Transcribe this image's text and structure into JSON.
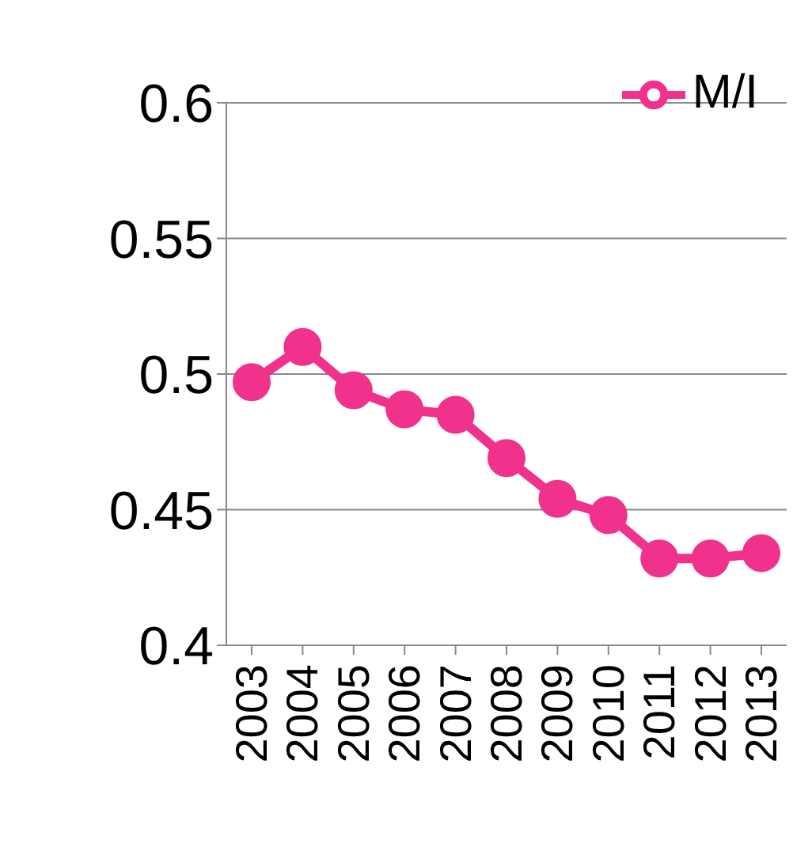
{
  "chart_data": {
    "type": "line",
    "categories": [
      "2003",
      "2004",
      "2005",
      "2006",
      "2007",
      "2008",
      "2009",
      "2010",
      "2011",
      "2012",
      "2013"
    ],
    "series": [
      {
        "name": "M/I",
        "color": "#f0328c",
        "values": [
          0.497,
          0.51,
          0.494,
          0.487,
          0.485,
          0.469,
          0.454,
          0.448,
          0.432,
          0.432,
          0.434
        ]
      }
    ],
    "ylim": [
      0.4,
      0.6
    ],
    "yticks": [
      0.4,
      {
        "value": 0.45,
        "label": "0.45"
      },
      0.5,
      {
        "value": 0.55,
        "label": "0.55"
      },
      0.6
    ],
    "grid": "y",
    "legend": "top right",
    "marker": "circle"
  }
}
